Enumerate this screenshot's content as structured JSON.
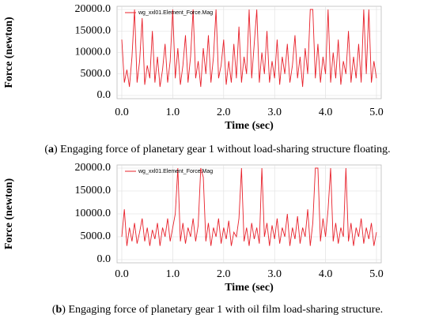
{
  "chart_data": [
    {
      "type": "line",
      "series": [
        {
          "name": "wg_xxl01.Element_Force.Mag",
          "color": "#e8202a",
          "values": [
            13000,
            3000,
            6000,
            2000,
            9000,
            20000,
            3000,
            8000,
            18000,
            2500,
            7000,
            4000,
            15000,
            3000,
            9000,
            2000,
            6000,
            12000,
            3000,
            8000,
            20000,
            4000,
            11000,
            2500,
            7000,
            14000,
            3000,
            9000,
            20000,
            4000,
            8000,
            2000,
            11000,
            5000,
            14000,
            3000,
            9000,
            20000,
            4000,
            7000,
            13000,
            2500,
            8000,
            3000,
            12000,
            4000,
            16000,
            3000,
            9000,
            5000,
            20000,
            4000,
            12000,
            20000,
            3000,
            10000,
            5000,
            15000,
            3000,
            8000,
            4000,
            13000,
            2500,
            9000,
            5000,
            12000,
            3000,
            7000,
            14000,
            4000,
            9000,
            2000,
            11000,
            5000,
            20000,
            20000,
            4000,
            12000,
            3000,
            9000,
            5000,
            20000,
            3000,
            10000,
            4000,
            13000,
            2500,
            8000,
            5000,
            15000,
            3000,
            9000,
            4000,
            12000,
            3000,
            20000,
            5000,
            20000,
            3000,
            8000,
            4000
          ]
        }
      ],
      "x": [
        0,
        0.05,
        0.1,
        0.15,
        0.2,
        0.25,
        0.3,
        0.35,
        0.4,
        0.45,
        0.5,
        0.55,
        0.6,
        0.65,
        0.7,
        0.75,
        0.8,
        0.85,
        0.9,
        0.95,
        1,
        1.05,
        1.1,
        1.15,
        1.2,
        1.25,
        1.3,
        1.35,
        1.4,
        1.45,
        1.5,
        1.55,
        1.6,
        1.65,
        1.7,
        1.75,
        1.8,
        1.85,
        1.9,
        1.95,
        2,
        2.05,
        2.1,
        2.15,
        2.2,
        2.25,
        2.3,
        2.35,
        2.4,
        2.45,
        2.5,
        2.55,
        2.6,
        2.65,
        2.7,
        2.75,
        2.8,
        2.85,
        2.9,
        2.95,
        3,
        3.05,
        3.1,
        3.15,
        3.2,
        3.25,
        3.3,
        3.35,
        3.4,
        3.45,
        3.5,
        3.55,
        3.6,
        3.65,
        3.7,
        3.75,
        3.8,
        3.85,
        3.9,
        3.95,
        4,
        4.05,
        4.1,
        4.15,
        4.2,
        4.25,
        4.3,
        4.35,
        4.4,
        4.45,
        4.5,
        4.55,
        4.6,
        4.65,
        4.7,
        4.75,
        4.8,
        4.85,
        4.9,
        4.95,
        5
      ],
      "xlim": [
        0,
        5
      ],
      "xticks": [
        {
          "value": 0,
          "label": "0.0"
        },
        {
          "value": 1,
          "label": "1.0"
        },
        {
          "value": 2,
          "label": "2.0"
        },
        {
          "value": 3,
          "label": "3.0"
        },
        {
          "value": 4,
          "label": "4.0"
        },
        {
          "value": 5,
          "label": "5.0"
        }
      ],
      "ylim": [
        0,
        20000
      ],
      "yticks": [
        {
          "value": 0,
          "label": "0.0"
        },
        {
          "value": 5000,
          "label": "5000.0"
        },
        {
          "value": 10000,
          "label": "10000.0"
        },
        {
          "value": 15000,
          "label": "15000.0"
        },
        {
          "value": 20000,
          "label": "20000.0"
        }
      ],
      "xlabel": "Time (sec)",
      "ylabel": "Force (newton)",
      "grid": true,
      "legend": "top-left",
      "caption": {
        "prefix": "(",
        "label": "a",
        "suffix": ") Engaging force of planetary gear 1 without load-sharing structure floating."
      }
    },
    {
      "type": "line",
      "series": [
        {
          "name": "wg_xxl01.Element_Force.Mag",
          "color": "#e8202a",
          "values": [
            5000,
            11000,
            3000,
            7000,
            4000,
            8000,
            3500,
            6000,
            9000,
            4000,
            7000,
            3000,
            6500,
            4500,
            8000,
            3000,
            7000,
            5000,
            9000,
            4000,
            7000,
            10000,
            20000,
            4000,
            8000,
            3500,
            7000,
            5000,
            9000,
            4000,
            7500,
            20000,
            18000,
            4000,
            8000,
            3000,
            7000,
            5000,
            9000,
            3500,
            7000,
            4500,
            8500,
            3000,
            6000,
            5000,
            9000,
            20000,
            4000,
            7000,
            3000,
            8000,
            4500,
            7000,
            3500,
            20000,
            5000,
            8000,
            3000,
            7500,
            4500,
            9000,
            3500,
            7000,
            5000,
            10000,
            3000,
            7000,
            4500,
            9500,
            3500,
            7000,
            5000,
            11000,
            3000,
            8000,
            20000,
            20000,
            4000,
            9000,
            5000,
            11000,
            20000,
            4000,
            8000,
            3500,
            7000,
            5000,
            20000,
            4000,
            8000,
            3000,
            7000,
            5000,
            9000,
            3500,
            7000,
            4500,
            8000,
            3000,
            6000
          ]
        }
      ],
      "x": [
        0,
        0.05,
        0.1,
        0.15,
        0.2,
        0.25,
        0.3,
        0.35,
        0.4,
        0.45,
        0.5,
        0.55,
        0.6,
        0.65,
        0.7,
        0.75,
        0.8,
        0.85,
        0.9,
        0.95,
        1,
        1.05,
        1.1,
        1.15,
        1.2,
        1.25,
        1.3,
        1.35,
        1.4,
        1.45,
        1.5,
        1.55,
        1.6,
        1.65,
        1.7,
        1.75,
        1.8,
        1.85,
        1.9,
        1.95,
        2,
        2.05,
        2.1,
        2.15,
        2.2,
        2.25,
        2.3,
        2.35,
        2.4,
        2.45,
        2.5,
        2.55,
        2.6,
        2.65,
        2.7,
        2.75,
        2.8,
        2.85,
        2.9,
        2.95,
        3,
        3.05,
        3.1,
        3.15,
        3.2,
        3.25,
        3.3,
        3.35,
        3.4,
        3.45,
        3.5,
        3.55,
        3.6,
        3.65,
        3.7,
        3.75,
        3.8,
        3.85,
        3.9,
        3.95,
        4,
        4.05,
        4.1,
        4.15,
        4.2,
        4.25,
        4.3,
        4.35,
        4.4,
        4.45,
        4.5,
        4.55,
        4.6,
        4.65,
        4.7,
        4.75,
        4.8,
        4.85,
        4.9,
        4.95,
        5
      ],
      "xlim": [
        0,
        5
      ],
      "xticks": [
        {
          "value": 0,
          "label": "0.0"
        },
        {
          "value": 1,
          "label": "1.0"
        },
        {
          "value": 2,
          "label": "2.0"
        },
        {
          "value": 3,
          "label": "3.0"
        },
        {
          "value": 4,
          "label": "4.0"
        },
        {
          "value": 5,
          "label": "5.0"
        }
      ],
      "ylim": [
        0,
        20000
      ],
      "yticks": [
        {
          "value": 0,
          "label": "0.0"
        },
        {
          "value": 5000,
          "label": "5000.0"
        },
        {
          "value": 10000,
          "label": "10000.0"
        },
        {
          "value": 15000,
          "label": "15000.0"
        },
        {
          "value": 20000,
          "label": "20000.0"
        }
      ],
      "xlabel": "Time (sec)",
      "ylabel": "Force (newton)",
      "grid": true,
      "legend": "top-left",
      "caption": {
        "prefix": "(",
        "label": "b",
        "suffix": ") Engaging force of planetary gear 1 with oil film load-sharing structure."
      }
    }
  ]
}
